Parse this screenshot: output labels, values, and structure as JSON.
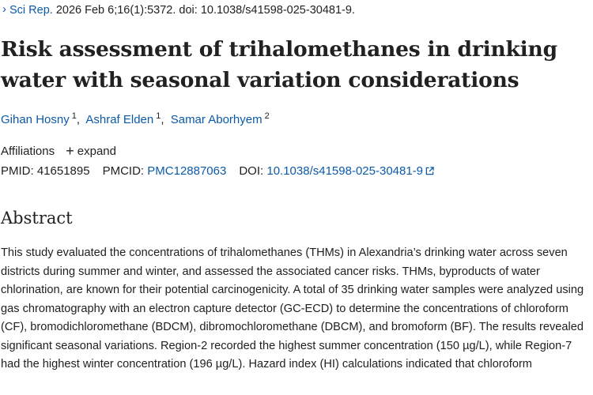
{
  "citation": {
    "chevron_icon": "chevron-right-icon",
    "journal": "Sci Rep.",
    "details": " 2026 Feb 6;16(1):5372. doi: 10.1038/s41598-025-30481-9."
  },
  "article": {
    "title": "Risk assessment of trihalomethanes in drinking water with seasonal variation considerations"
  },
  "authors": [
    {
      "name": "Gihan Hosny",
      "affiliation": "1"
    },
    {
      "name": "Ashraf Elden",
      "affiliation": "1"
    },
    {
      "name": "Samar Aborhyem",
      "affiliation": "2"
    }
  ],
  "affiliations": {
    "label": "Affiliations",
    "expand_label": "expand",
    "expand_icon": "plus-icon"
  },
  "identifiers": {
    "pmid_label": "PMID:",
    "pmid": "41651895",
    "pmcid_label": "PMCID:",
    "pmcid": "PMC12887063",
    "doi_label": "DOI:",
    "doi": "10.1038/s41598-025-30481-9",
    "doi_icon": "external-link-icon"
  },
  "abstract": {
    "heading": "Abstract",
    "text": "This study evaluated the concentrations of trihalomethanes (THMs) in Alexandria’s drinking water across seven districts during summer and winter, and assessed the associated cancer risks. THMs, byproducts of water chlorination, are known for their potential carcinogenicity. A total of 35 drinking water samples were analyzed using gas chromatography with an electron capture detector (GC-ECD) to determine the concentrations of chloroform (CF), bromodichloromethane (BDCM), dibromochloromethane (DBCM), and bromoform (BF). The results revealed significant seasonal variations. Region-2 recorded the highest summer concentration (150 µg/L), while Region-7 had the highest winter concentration (196 µg/L). Hazard index (HI) calculations indicated that chloroform"
  },
  "colors": {
    "link": "#0b5aa8",
    "text": "#212121"
  }
}
